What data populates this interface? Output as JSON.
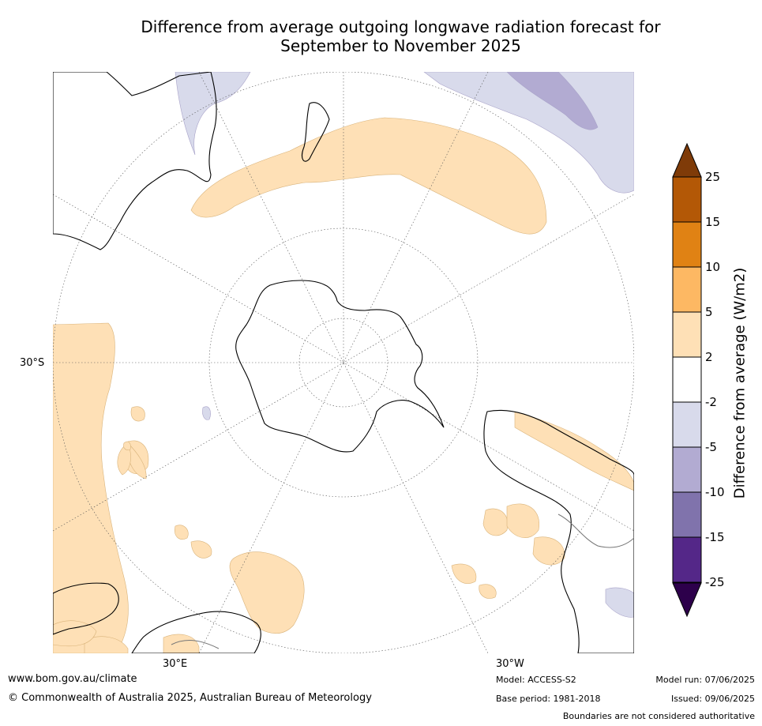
{
  "title_line1": "Difference from average outgoing longwave radiation forecast for",
  "title_line2": "September to November 2025",
  "map": {
    "labels": {
      "lat_30s": "30°S",
      "lon_30e": "30°E",
      "lon_30w": "30°W"
    }
  },
  "colorbar": {
    "title": "Difference from average (W/m2)",
    "ticks": [
      "25",
      "15",
      "10",
      "5",
      "2",
      "-2",
      "-5",
      "-10",
      "-15",
      "-25"
    ],
    "colors": [
      "#7f3b08",
      "#b35806",
      "#e08214",
      "#fdb863",
      "#fee0b6",
      "#ffffff",
      "#d8daeb",
      "#b2abd2",
      "#8073ac",
      "#542788",
      "#2d004b"
    ]
  },
  "footer": {
    "website": "www.bom.gov.au/climate",
    "copyright": "© Commonwealth of Australia 2025, Australian Bureau of Meteorology",
    "model": "Model: ACCESS-S2",
    "base_period": "Base period: 1981-2018",
    "model_run": "Model run: 07/06/2025",
    "issued": "Issued: 09/06/2025",
    "disclaimer": "Boundaries are not considered authoritative"
  }
}
